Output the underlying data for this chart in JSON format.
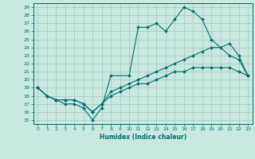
{
  "xlabel": "Humidex (Indice chaleur)",
  "xlim": [
    -0.5,
    23.5
  ],
  "ylim": [
    14.5,
    29.5
  ],
  "yticks": [
    15,
    16,
    17,
    18,
    19,
    20,
    21,
    22,
    23,
    24,
    25,
    26,
    27,
    28,
    29
  ],
  "xticks": [
    0,
    1,
    2,
    3,
    4,
    5,
    6,
    7,
    8,
    9,
    10,
    11,
    12,
    13,
    14,
    15,
    16,
    17,
    18,
    19,
    20,
    21,
    22,
    23
  ],
  "bg_color": "#c8e8e0",
  "grid_color": "#a0c8c0",
  "line_color": "#007070",
  "series": [
    {
      "x": [
        0,
        1,
        2,
        3,
        4,
        5,
        6,
        7,
        8,
        10,
        11,
        12,
        13,
        14,
        15,
        16,
        17,
        18,
        19,
        21,
        22,
        23
      ],
      "y": [
        19,
        18,
        17.5,
        17,
        17,
        16.5,
        15,
        16.5,
        20.5,
        20.5,
        26.5,
        26.5,
        27,
        26,
        27.5,
        29,
        28.5,
        27.5,
        25,
        23,
        22.5,
        20.5
      ]
    },
    {
      "x": [
        0,
        1,
        2,
        3,
        4,
        5,
        6,
        7,
        8,
        9,
        10,
        11,
        12,
        13,
        14,
        15,
        16,
        17,
        18,
        19,
        20,
        21,
        22,
        23
      ],
      "y": [
        19,
        18,
        17.5,
        17.5,
        17.5,
        17,
        16,
        17,
        18.5,
        19,
        19.5,
        20,
        20.5,
        21,
        21.5,
        22,
        22.5,
        23,
        23.5,
        24,
        24,
        24.5,
        23,
        20.5
      ]
    },
    {
      "x": [
        0,
        1,
        2,
        3,
        4,
        5,
        6,
        7,
        8,
        9,
        10,
        11,
        12,
        13,
        14,
        15,
        16,
        17,
        18,
        19,
        20,
        21,
        22,
        23
      ],
      "y": [
        19,
        18,
        17.5,
        17.5,
        17.5,
        17,
        16,
        17,
        18,
        18.5,
        19,
        19.5,
        19.5,
        20,
        20.5,
        21,
        21,
        21.5,
        21.5,
        21.5,
        21.5,
        21.5,
        21,
        20.5
      ]
    }
  ]
}
